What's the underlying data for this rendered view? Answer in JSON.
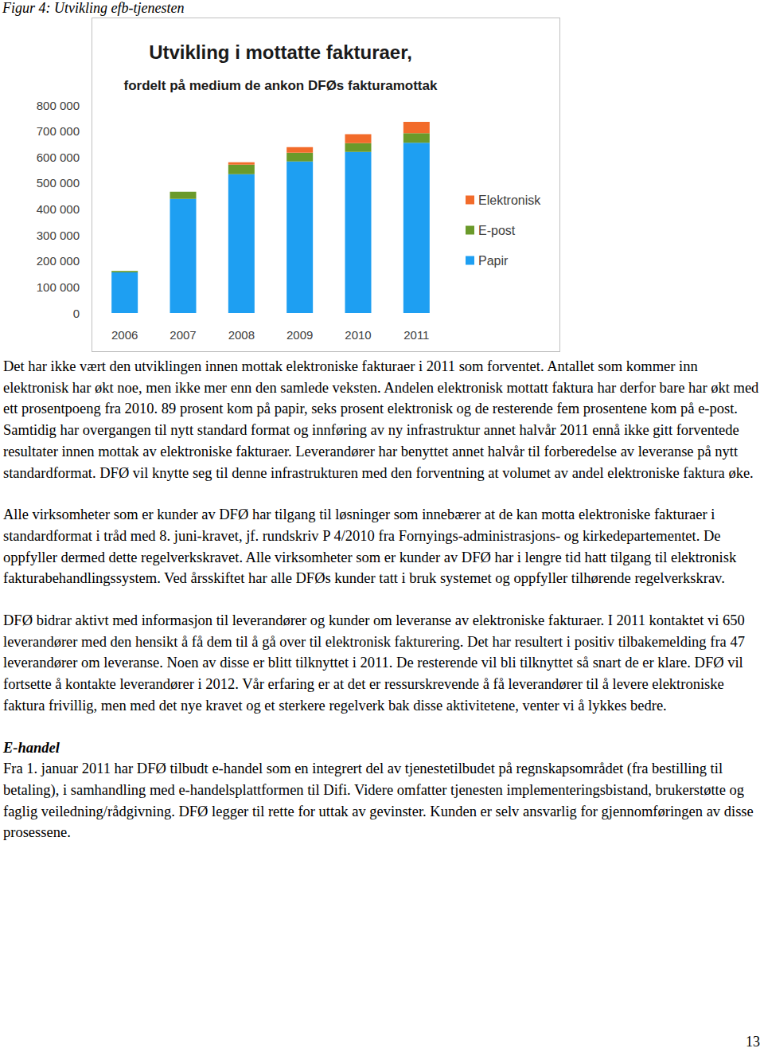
{
  "caption": "Figur 4: Utvikling efb-tjenesten",
  "chart_data": {
    "type": "bar",
    "stacked": true,
    "title": "Utvikling i mottatte fakturaer,",
    "subtitle": "fordelt på medium de ankon DFØs fakturamottak",
    "categories": [
      "2006",
      "2007",
      "2008",
      "2009",
      "2010",
      "2011"
    ],
    "series": [
      {
        "name": "Papir",
        "color": "#1e9ff2",
        "values": [
          156000,
          439000,
          534000,
          583000,
          620000,
          655000
        ]
      },
      {
        "name": "E-post",
        "color": "#6a9a2a",
        "values": [
          6000,
          28000,
          37000,
          34000,
          34000,
          37000
        ]
      },
      {
        "name": "Elektronisk",
        "color": "#f26b2a",
        "values": [
          0,
          0,
          9000,
          21000,
          34000,
          44000
        ]
      }
    ],
    "ylim": [
      0,
      800000
    ],
    "yticks": [
      0,
      {
        "value": 100000,
        "label": "100 000"
      },
      {
        "value": 200000,
        "label": "200 000"
      },
      {
        "value": 300000,
        "label": "300 000"
      },
      {
        "value": 400000,
        "label": "400 000"
      },
      {
        "value": 500000,
        "label": "500 000"
      },
      {
        "value": 600000,
        "label": "600 000"
      },
      {
        "value": 700000,
        "label": "700 000"
      },
      {
        "value": 800000,
        "label": "800 000"
      }
    ],
    "grid": false,
    "legend": "right"
  },
  "body": {
    "paragraphs": [
      "Det har ikke vært den utviklingen innen mottak elektroniske fakturaer i 2011 som forventet. Antallet som kommer inn elektronisk har økt noe, men ikke mer enn den samlede veksten. Andelen elektronisk mottatt faktura har derfor bare har økt med ett prosentpoeng fra 2010. 89 prosent kom på papir, seks prosent elektronisk og de resterende fem prosentene kom på e-post. Samtidig har overgangen til nytt standard format og innføring av ny infrastruktur annet halvår 2011 ennå ikke gitt forventede resultater innen mottak av elektroniske fakturaer. Leverandører har benyttet annet halvår til forberedelse av leveranse på nytt standardformat. DFØ vil knytte seg til denne infrastrukturen med den forventning at volumet av andel elektroniske faktura øke.",
      "Alle virksomheter som er kunder av DFØ har tilgang til løsninger som innebærer at de kan motta elektroniske fakturaer i standardformat i tråd med 8. juni-kravet, jf. rundskriv P 4/2010 fra Fornyings-administrasjons- og kirkedepartementet. De oppfyller dermed dette regelverkskravet. Alle virksomheter som er kunder av DFØ har i lengre tid hatt tilgang til elektronisk fakturabehandlingssystem. Ved årsskiftet har alle DFØs kunder tatt i bruk systemet og oppfyller tilhørende regelverkskrav.",
      "DFØ bidrar aktivt med informasjon til leverandører og kunder om leveranse av elektroniske fakturaer. I 2011 kontaktet vi 650 leverandører med den hensikt å få dem til å gå over til elektronisk fakturering. Det har resultert i positiv tilbakemelding fra 47 leverandører om leveranse. Noen av disse er blitt tilknyttet i 2011. De resterende vil bli tilknyttet så snart de er klare. DFØ vil fortsette å kontakte leverandører i 2012. Vår erfaring er at det er ressurskrevende å få leverandører til å levere elektroniske faktura frivillig, men med det nye kravet og et sterkere regelverk bak disse aktivitetene, venter vi å lykkes bedre."
    ],
    "section": {
      "heading": "E-handel",
      "paragraphs": [
        "Fra 1. januar 2011 har DFØ tilbudt e-handel som en integrert del av tjenestetilbudet på regnskapsområdet (fra bestilling til betaling), i samhandling med e-handelsplattformen til Difi. Videre omfatter tjenesten implementeringsbistand, brukerstøtte og faglig veiledning/rådgivning.  DFØ legger til rette for uttak av gevinster. Kunden er selv ansvarlig for gjennomføringen av disse prosessene."
      ]
    }
  },
  "page_number": "13"
}
